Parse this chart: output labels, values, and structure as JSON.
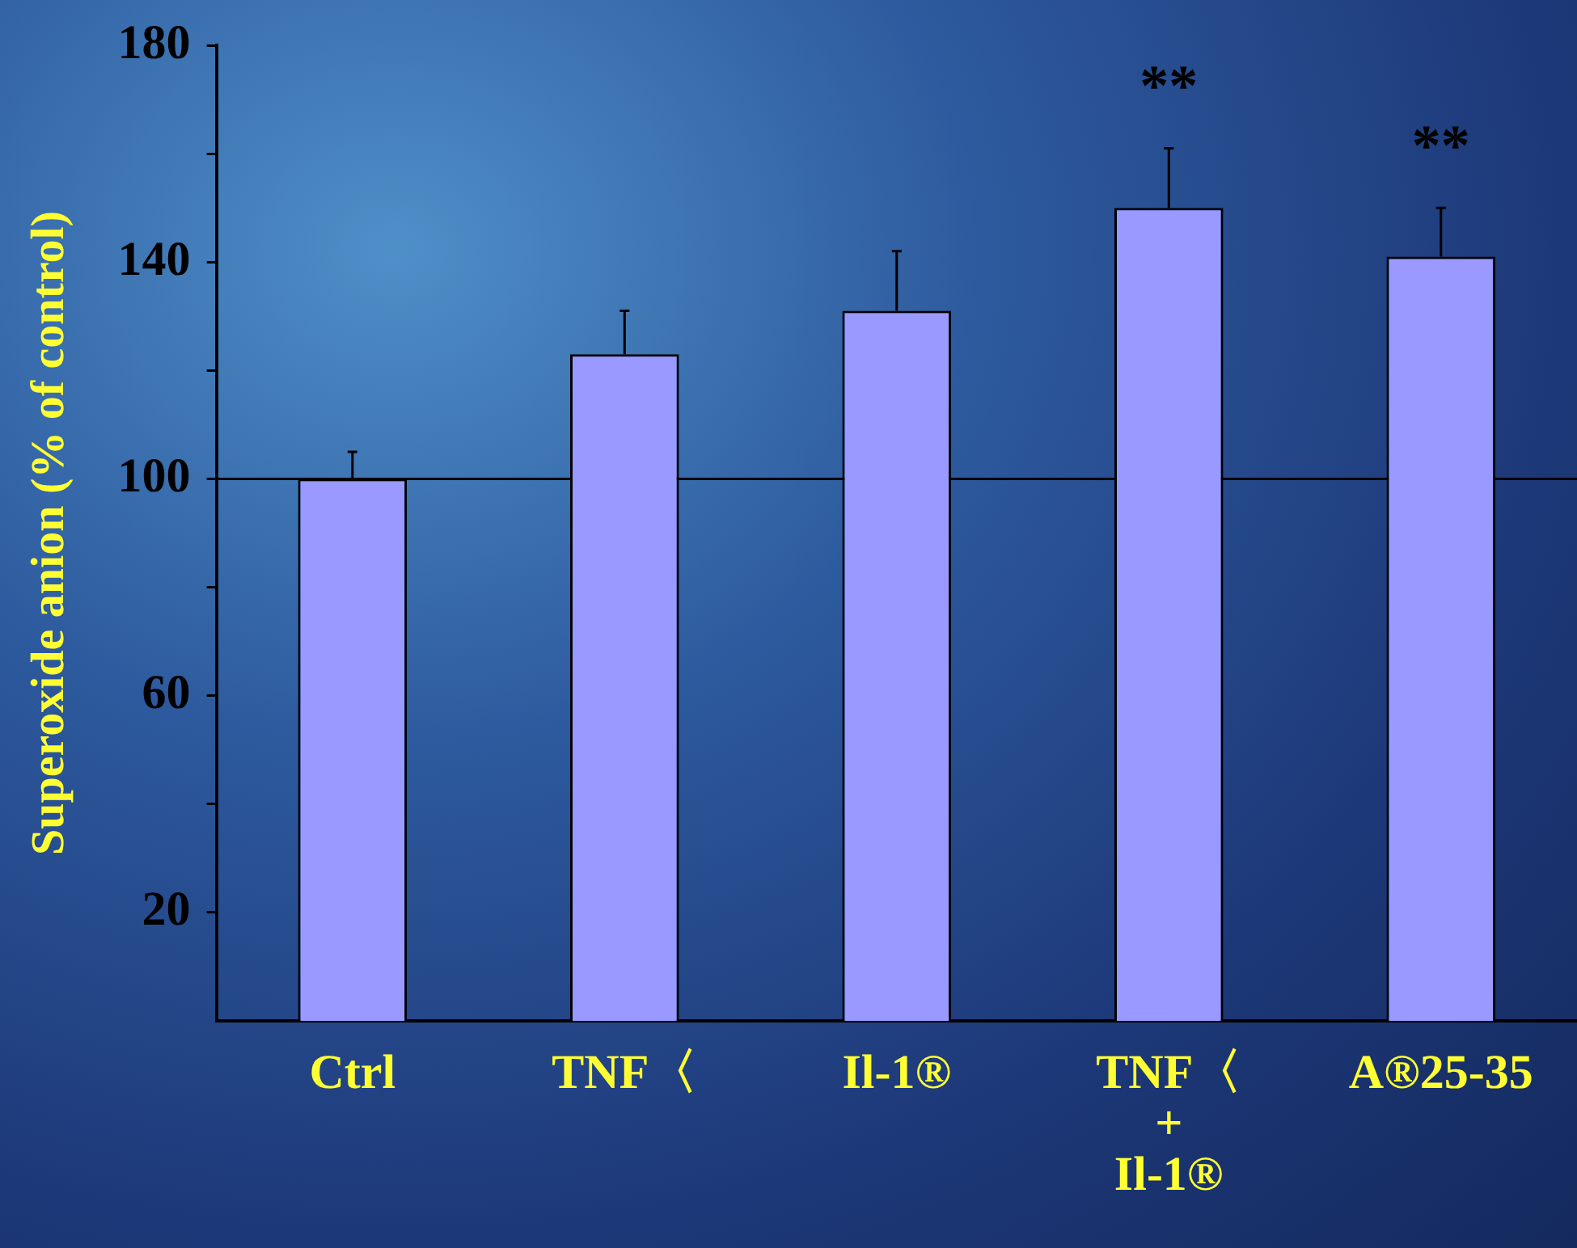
{
  "chart_data": {
    "type": "bar",
    "ylabel": "Superoxide anion (% of control)",
    "categories": [
      "Ctrl",
      "TNF〈",
      "Il-1®",
      "TNF〈\n+\nIl-1®",
      "A®25-35"
    ],
    "values": [
      100,
      123,
      131,
      150,
      141
    ],
    "errors": [
      [
        100,
        105
      ],
      [
        123,
        131
      ],
      [
        131,
        142
      ],
      [
        150,
        161
      ],
      [
        141,
        150
      ]
    ],
    "color": "#9999ff",
    "ylim": [
      0,
      180
    ],
    "yticks": [
      20,
      {
        "value": 40,
        "label": null
      },
      60,
      {
        "value": 80,
        "label": null
      },
      100,
      {
        "value": 120,
        "label": null
      },
      140,
      {
        "value": 160,
        "label": null
      },
      180
    ],
    "ref_lines": [
      {
        "axis": "y",
        "value": 100,
        "color": "#000000"
      }
    ],
    "annotations": [
      "**",
      "**"
    ],
    "grid": false,
    "legend": false
  }
}
